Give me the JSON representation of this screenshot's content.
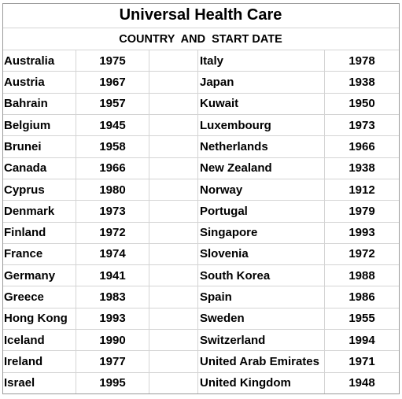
{
  "title": "Universal Health Care",
  "subtitle": "COUNTRY  AND  START DATE",
  "rows": [
    [
      "Australia",
      1975,
      "Italy",
      1978
    ],
    [
      "Austria",
      1967,
      "Japan",
      1938
    ],
    [
      "Bahrain",
      1957,
      "Kuwait",
      1950
    ],
    [
      "Belgium",
      1945,
      "Luxembourg",
      1973
    ],
    [
      "Brunei",
      1958,
      "Netherlands",
      1966
    ],
    [
      "Canada",
      1966,
      "New Zealand",
      1938
    ],
    [
      "Cyprus",
      1980,
      "Norway",
      1912
    ],
    [
      "Denmark",
      1973,
      "Portugal",
      1979
    ],
    [
      "Finland",
      1972,
      "Singapore",
      1993
    ],
    [
      "France",
      1974,
      "Slovenia",
      1972
    ],
    [
      "Germany",
      1941,
      "South Korea",
      1988
    ],
    [
      "Greece",
      1983,
      "Spain",
      1986
    ],
    [
      "Hong Kong",
      1993,
      "Sweden",
      1955
    ],
    [
      "Iceland",
      1990,
      "Switzerland",
      1994
    ],
    [
      "Ireland",
      1977,
      "United Arab Emirates",
      1971
    ],
    [
      "Israel",
      1995,
      "United Kingdom",
      1948
    ]
  ]
}
